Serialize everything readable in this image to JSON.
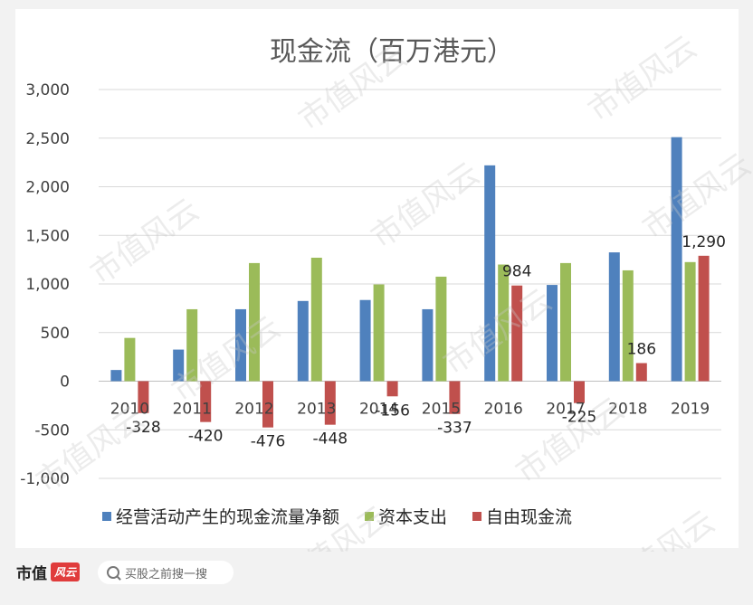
{
  "chart_data": {
    "type": "bar",
    "title": "现金流（百万港元）",
    "categories": [
      "2010",
      "2011",
      "2012",
      "2013",
      "2014",
      "2015",
      "2016",
      "2017",
      "2018",
      "2019"
    ],
    "series": [
      {
        "name": "经营活动产生的现金流量净额",
        "color": "#4f81bd",
        "values": [
          115,
          325,
          740,
          825,
          835,
          740,
          2220,
          990,
          1325,
          2510
        ]
      },
      {
        "name": "资本支出",
        "color": "#9bbb59",
        "values": [
          445,
          740,
          1215,
          1270,
          995,
          1075,
          1200,
          1215,
          1140,
          1225
        ]
      },
      {
        "name": "自由现金流",
        "color": "#c0504d",
        "values": [
          -328,
          -420,
          -476,
          -448,
          -156,
          -337,
          984,
          -225,
          186,
          1290
        ],
        "data_labels": [
          "-328",
          "-420",
          "-476",
          "-448",
          "-156",
          "-337",
          "984",
          "-225",
          "186",
          "1,290"
        ]
      }
    ],
    "yticks": [
      "3,000",
      "2,500",
      "2,000",
      "1,500",
      "1,000",
      "500",
      "0",
      "-500",
      "-1,000"
    ],
    "ylim": [
      -1000,
      3000
    ],
    "grid": true,
    "legend_position": "bottom"
  },
  "watermark": "市值风云",
  "footer": {
    "brand": "市值",
    "brand_mark": "风云",
    "search_text": "买股之前搜一搜"
  }
}
